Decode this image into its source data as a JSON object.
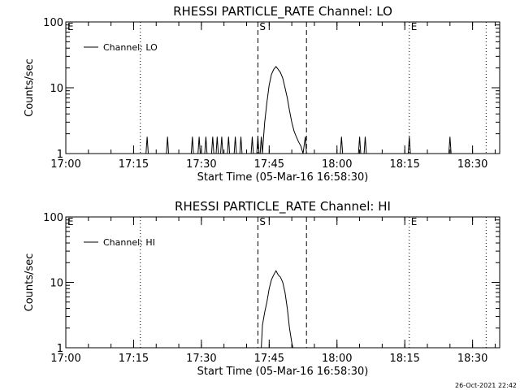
{
  "chart_data": [
    {
      "type": "line",
      "title": "RHESSI PARTICLE_RATE Channel: LO",
      "xlabel": "Start Time (05-Mar-16 16:58:30)",
      "ylabel": "Counts/sec",
      "y_scale": "log",
      "ylim": [
        1,
        100
      ],
      "xlim": [
        "17:00",
        "18:36"
      ],
      "grid": false,
      "legend_position": "top-left",
      "x_tick_labels": [
        "17:00",
        "17:15",
        "17:30",
        "17:45",
        "18:00",
        "18:15",
        "18:30"
      ],
      "y_tick_labels": [
        "1",
        "10",
        "100"
      ],
      "series": [
        {
          "name": "Channel: LO",
          "color": "#000000",
          "points": [
            [
              "17:17:45",
              1
            ],
            [
              "17:18:00",
              1.8
            ],
            [
              "17:18:15",
              1
            ],
            [
              "17:22:15",
              1
            ],
            [
              "17:22:30",
              1.8
            ],
            [
              "17:22:45",
              1
            ],
            [
              "17:27:45",
              1
            ],
            [
              "17:28:00",
              1.8
            ],
            [
              "17:28:15",
              1
            ],
            [
              "17:29:15",
              1
            ],
            [
              "17:29:30",
              1.8
            ],
            [
              "17:29:45",
              1
            ],
            [
              "17:30:45",
              1
            ],
            [
              "17:31:00",
              1.8
            ],
            [
              "17:31:15",
              1
            ],
            [
              "17:32:15",
              1
            ],
            [
              "17:32:30",
              1.8
            ],
            [
              "17:32:45",
              1
            ],
            [
              "17:33:15",
              1
            ],
            [
              "17:33:30",
              1.8
            ],
            [
              "17:33:45",
              1
            ],
            [
              "17:34:15",
              1
            ],
            [
              "17:34:30",
              1.8
            ],
            [
              "17:34:45",
              1
            ],
            [
              "17:35:45",
              1
            ],
            [
              "17:36:00",
              1.8
            ],
            [
              "17:36:15",
              1
            ],
            [
              "17:37:15",
              1
            ],
            [
              "17:37:30",
              1.8
            ],
            [
              "17:37:45",
              1
            ],
            [
              "17:38:30",
              1
            ],
            [
              "17:38:45",
              1.8
            ],
            [
              "17:39:00",
              1
            ],
            [
              "17:41:00",
              1
            ],
            [
              "17:41:15",
              1.8
            ],
            [
              "17:41:30",
              1
            ],
            [
              "17:42:15",
              1
            ],
            [
              "17:42:30",
              1.8
            ],
            [
              "17:42:45",
              1
            ],
            [
              "17:43:00",
              1
            ],
            [
              "17:43:15",
              1.8
            ],
            [
              "17:43:30",
              1
            ],
            [
              "17:43:45",
              1.8
            ],
            [
              "17:44:00",
              3
            ],
            [
              "17:44:30",
              6
            ],
            [
              "17:45:00",
              11
            ],
            [
              "17:45:30",
              16
            ],
            [
              "17:46:00",
              19
            ],
            [
              "17:46:30",
              21
            ],
            [
              "17:47:00",
              19
            ],
            [
              "17:47:30",
              17
            ],
            [
              "17:48:00",
              14
            ],
            [
              "17:48:30",
              10
            ],
            [
              "17:49:00",
              7
            ],
            [
              "17:49:30",
              4.5
            ],
            [
              "17:50:00",
              3
            ],
            [
              "17:50:30",
              2.2
            ],
            [
              "17:51:00",
              1.8
            ],
            [
              "17:51:30",
              1.5
            ],
            [
              "17:52:00",
              1.3
            ],
            [
              "17:52:30",
              1
            ],
            [
              "17:53:00",
              1.8
            ],
            [
              "17:53:15",
              1
            ],
            [
              "18:00:45",
              1
            ],
            [
              "18:01:00",
              1.8
            ],
            [
              "18:01:15",
              1
            ],
            [
              "18:04:45",
              1
            ],
            [
              "18:05:00",
              1.8
            ],
            [
              "18:05:15",
              1
            ],
            [
              "18:06:00",
              1
            ],
            [
              "18:06:15",
              1.8
            ],
            [
              "18:06:30",
              1
            ],
            [
              "18:15:45",
              1
            ],
            [
              "18:16:00",
              1.8
            ],
            [
              "18:16:15",
              1
            ],
            [
              "18:24:45",
              1
            ],
            [
              "18:25:00",
              1.8
            ],
            [
              "18:25:15",
              1
            ]
          ]
        }
      ]
    },
    {
      "type": "line",
      "title": "RHESSI PARTICLE_RATE Channel: HI",
      "xlabel": "Start Time (05-Mar-16 16:58:30)",
      "ylabel": "Counts/sec",
      "y_scale": "log",
      "ylim": [
        1,
        100
      ],
      "xlim": [
        "17:00",
        "18:36"
      ],
      "grid": false,
      "legend_position": "top-left",
      "x_tick_labels": [
        "17:00",
        "17:15",
        "17:30",
        "17:45",
        "18:00",
        "18:15",
        "18:30"
      ],
      "y_tick_labels": [
        "1",
        "10",
        "100"
      ],
      "series": [
        {
          "name": "Channel: HI",
          "color": "#000000",
          "points": [
            [
              "17:43:15",
              1.0
            ],
            [
              "17:43:30",
              2.2
            ],
            [
              "17:44:00",
              3.5
            ],
            [
              "17:44:30",
              5
            ],
            [
              "17:45:00",
              8
            ],
            [
              "17:45:30",
              11
            ],
            [
              "17:46:00",
              13
            ],
            [
              "17:46:30",
              15
            ],
            [
              "17:47:00",
              13
            ],
            [
              "17:47:30",
              12
            ],
            [
              "17:48:00",
              10
            ],
            [
              "17:48:30",
              7
            ],
            [
              "17:49:00",
              4
            ],
            [
              "17:49:30",
              2
            ],
            [
              "17:50:00",
              1.2
            ],
            [
              "17:50:15",
              1.0
            ]
          ]
        }
      ]
    }
  ],
  "markers": {
    "dashed": [
      "17:42:30",
      "17:53:15"
    ],
    "dotted": [
      "17:16:30",
      "18:16:00",
      "18:33:00"
    ],
    "labels": [
      {
        "text": "E",
        "at": "17:00:00"
      },
      {
        "text": "S",
        "at": "17:42:30"
      },
      {
        "text": "E",
        "at": "18:16:00"
      }
    ]
  },
  "footer": "26-Oct-2021 22:42"
}
